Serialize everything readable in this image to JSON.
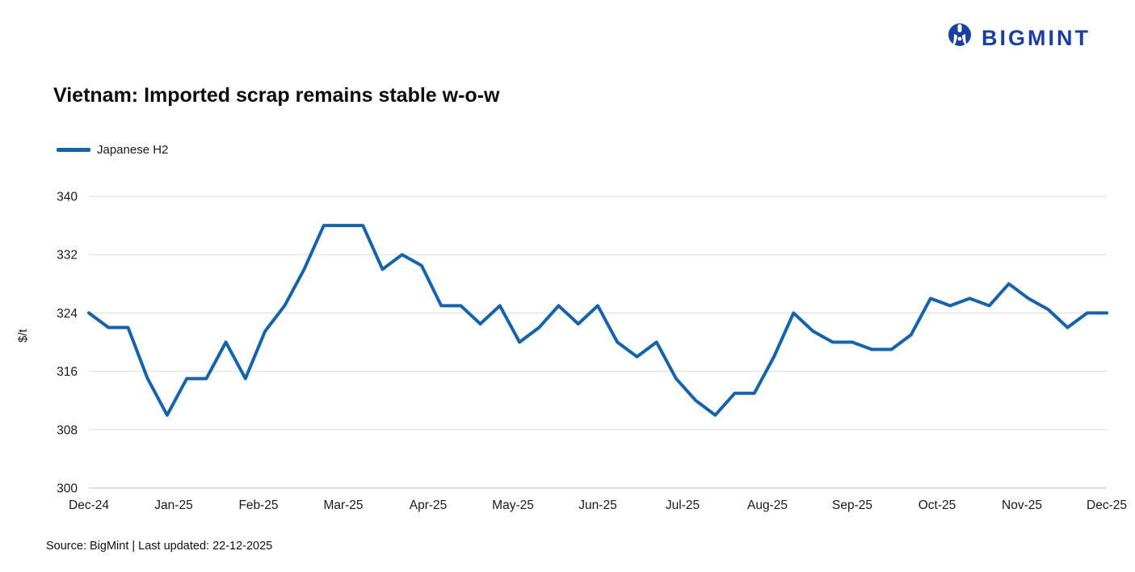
{
  "logo": {
    "text": "BIGMINT",
    "color": "#1b3fa0",
    "icon": "bigmint-mammoth-icon"
  },
  "title": "Vietnam: Imported scrap remains stable w-o-w",
  "footer": {
    "source": "Source: BigMint | Last updated: 22-12-2025"
  },
  "chart_data": {
    "type": "line",
    "title": "Vietnam: Imported scrap remains stable w-o-w",
    "xlabel": "",
    "ylabel": "$/t",
    "ylim": [
      300,
      340
    ],
    "yticks": [
      300,
      308,
      316,
      324,
      332,
      340
    ],
    "grid": "horizontal",
    "legend_position": "top-left",
    "x_tick_labels": [
      "Dec-24",
      "Jan-25",
      "Feb-25",
      "Mar-25",
      "Apr-25",
      "May-25",
      "Jun-25",
      "Jul-25",
      "Aug-25",
      "Sep-25",
      "Oct-25",
      "Nov-25",
      "Dec-25"
    ],
    "series": [
      {
        "name": "Japanese H2",
        "color": "#1663ac",
        "values": [
          324,
          322,
          322,
          315,
          310,
          315,
          315,
          320,
          315,
          321.5,
          325,
          330,
          336,
          336,
          336,
          330,
          332,
          330.5,
          325,
          325,
          322.5,
          325,
          320,
          322,
          325,
          322.5,
          325,
          320,
          318,
          320,
          315,
          312,
          310,
          313,
          313,
          318,
          324,
          321.5,
          320,
          320,
          319,
          319,
          321,
          326,
          325,
          326,
          325,
          328,
          326,
          324.5,
          322,
          324,
          324
        ]
      }
    ]
  }
}
